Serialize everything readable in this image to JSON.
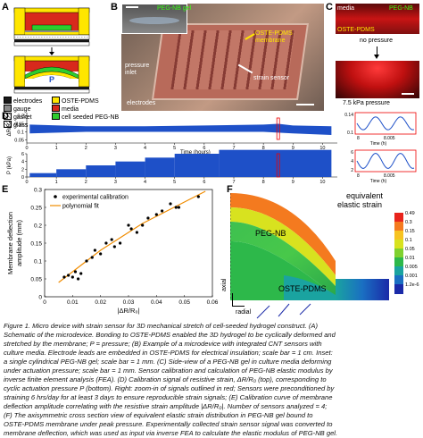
{
  "panel_a": {
    "label": "A",
    "pressure_label": "P",
    "legend": [
      {
        "text": "electrodes",
        "color": "#1a1a1a",
        "hatch": false
      },
      {
        "text": "OSTE-PDMS",
        "color": "#ffe600",
        "hatch": false
      },
      {
        "text": "gauge",
        "color": "#8a8a8a",
        "hatch": false
      },
      {
        "text": "media",
        "color": "#d8291c",
        "hatch": false
      },
      {
        "text": "gasket",
        "color": "#ffffff",
        "hatch": true
      },
      {
        "text": "cell seeded PEG-NB",
        "color": "#2ecc2e",
        "hatch": false
      },
      {
        "text": "glass",
        "color": "#ffffff",
        "hatch": true
      }
    ]
  },
  "panel_b": {
    "label": "B",
    "peg_nb_gel": "PEG-NB gel",
    "oste_membrane": "OSTE-PDMS\nmembrane",
    "strain_sensor": "strain sensor",
    "pressure_inlet": "pressure\ninlet",
    "electrodes": "electrodes"
  },
  "panel_c": {
    "label": "C",
    "media": "media",
    "peg_nb": "PEG-NB",
    "oste": "OSTE-PDMS",
    "no_pressure": "no pressure",
    "kpa_pressure": "7.5 kPa pressure"
  },
  "panel_d": {
    "label": "D",
    "top_ylabel": "ΔR/R₀",
    "top_yticks": [
      "0.2",
      "0.15",
      "0.1",
      "0.05"
    ],
    "bottom_ylabel": "P (kPa)",
    "bottom_yticks": [
      "6",
      "4",
      "2",
      "0"
    ],
    "xticks": [
      "0",
      "1",
      "2",
      "3",
      "4",
      "5",
      "6",
      "7",
      "8",
      "9",
      "10"
    ],
    "xlabel": "Time (hours)",
    "inset_top_yticks": [
      "0.14",
      "0.1"
    ],
    "inset_bottom_yticks": [
      "6",
      "4",
      "2"
    ],
    "inset_xticks": [
      "8",
      "8.005"
    ],
    "inset_xlabel": "Time (h)"
  },
  "panel_e": {
    "label": "E",
    "legend_points": "experimental calibration",
    "legend_fit": "polynomial fit",
    "ylabel_line1": "Membrane deflection",
    "ylabel_line2": "amplitude (mm)",
    "xlabel": "|ΔR/R₀|",
    "colors": {
      "points": "#000000",
      "fit": "#f08c00"
    }
  },
  "panel_f": {
    "label": "F",
    "title_line1": "equivalent",
    "title_line2": "elastic strain",
    "peg_nb": "PEG-NB",
    "oste": "OSTE-PDMS",
    "axial": "axial",
    "radial": "radial",
    "colorbar_ticks": [
      "0.49",
      "0.3",
      "0.15",
      "0.1",
      "0.05",
      "0.01",
      "0.005",
      "0.001",
      "1.2e-6"
    ],
    "colorbar_colors": [
      "#e8231c",
      "#f47a1f",
      "#f7c321",
      "#d8e21f",
      "#7fd12f",
      "#2db84a",
      "#1aa3a0",
      "#1a6fc2",
      "#1a2aa8"
    ]
  },
  "caption": [
    "Figure 1. Micro device with strain sensor for 3D mechanical stretch of cell-seeded hydrogel construct. (A)",
    "Schematic of the microdevice. Bonding to OSTE-PDMS enabled the 3D hydrogel to be cyclically deformed and",
    "stretched by the membrane; P = pressure; (B) Example of a microdevice with integrated CNT sensors with",
    "culture media. Electrode leads are embedded in OSTE-PDMS for electrical insulation; scale bar = 1 cm. Inset:",
    "a single cylindrical PEG-NB gel; scale bar = 1 mm. (C) Side-view of a PEG-NB gel in culture media deforming",
    "under actuation pressure; scale bar = 1 mm. Sensor calibration and calculation of PEG-NB elastic modulus by",
    "inverse finite element analysis (FEA). (D) Calibration signal of resistive strain, ΔR/R₀ (top), corresponding to",
    "cyclic actuation pressure P (bottom). Right: zoom-in of signals outlined in red; Sensors were preconditioned by",
    "straining 6 hrs/day for at least 3 days to ensure reproducible strain signals; (E) Calibration curve of membrane",
    "deflection amplitude correlating with the resistive strain amplitude |ΔR/R₀|. Number of sensors analyzed = 4;",
    "(F) The axisymmetric cross section view of equivalent elastic strain distribution in PEG-NB gel bound to",
    "OSTE-PDMS membrane under peak pressure. Experimentally collected strain sensor signal was converted to",
    "membrane deflection, which was used as input via inverse FEA to calculate the elastic modulus of PEG-NB gel."
  ],
  "chart_data": [
    {
      "type": "scatter",
      "title": "",
      "xlabel": "|ΔR/R₀|",
      "ylabel": "Membrane deflection amplitude (mm)",
      "xlim": [
        0,
        0.06
      ],
      "ylim": [
        0,
        0.3
      ],
      "xticks": [
        "0",
        "0.01",
        "0.02",
        "0.03",
        "0.04",
        "0.05",
        "0.06"
      ],
      "yticks": [
        "0",
        "0.05",
        "0.1",
        "0.15",
        "0.2",
        "0.25",
        "0.3"
      ],
      "series": [
        {
          "name": "experimental calibration",
          "points": [
            [
              0.007,
              0.055
            ],
            [
              0.0085,
              0.06
            ],
            [
              0.01,
              0.055
            ],
            [
              0.011,
              0.07
            ],
            [
              0.012,
              0.05
            ],
            [
              0.013,
              0.065
            ],
            [
              0.015,
              0.1
            ],
            [
              0.017,
              0.11
            ],
            [
              0.018,
              0.13
            ],
            [
              0.02,
              0.12
            ],
            [
              0.022,
              0.15
            ],
            [
              0.024,
              0.16
            ],
            [
              0.025,
              0.14
            ],
            [
              0.027,
              0.15
            ],
            [
              0.03,
              0.2
            ],
            [
              0.031,
              0.19
            ],
            [
              0.033,
              0.18
            ],
            [
              0.035,
              0.2
            ],
            [
              0.037,
              0.22
            ],
            [
              0.04,
              0.23
            ],
            [
              0.042,
              0.24
            ],
            [
              0.045,
              0.26
            ],
            [
              0.047,
              0.25
            ],
            [
              0.048,
              0.25
            ],
            [
              0.055,
              0.28
            ]
          ]
        },
        {
          "name": "polynomial fit",
          "points": [
            [
              0.005,
              0.04
            ],
            [
              0.01,
              0.07
            ],
            [
              0.015,
              0.1
            ],
            [
              0.02,
              0.13
            ],
            [
              0.025,
              0.155
            ],
            [
              0.03,
              0.18
            ],
            [
              0.035,
              0.205
            ],
            [
              0.04,
              0.225
            ],
            [
              0.045,
              0.245
            ],
            [
              0.05,
              0.265
            ],
            [
              0.055,
              0.285
            ],
            [
              0.0575,
              0.295
            ]
          ]
        }
      ]
    },
    {
      "type": "line",
      "title": "",
      "xlabel": "Time (hours)",
      "ylabel": "ΔR/R₀",
      "xlim": [
        0,
        10.5
      ],
      "ylim": [
        0.03,
        0.22
      ],
      "series": [
        {
          "name": "",
          "envelope_top": [
            [
              0.1,
              0.145
            ],
            [
              2,
              0.135
            ],
            [
              4,
              0.135
            ],
            [
              6,
              0.14
            ],
            [
              8,
              0.145
            ],
            [
              8.5,
              0.15
            ],
            [
              9,
              0.14
            ],
            [
              10.3,
              0.135
            ]
          ],
          "envelope_bottom": [
            [
              0.1,
              0.09
            ],
            [
              2,
              0.1
            ],
            [
              4,
              0.1
            ],
            [
              6,
              0.1
            ],
            [
              8,
              0.1
            ],
            [
              9,
              0.09
            ],
            [
              10.3,
              0.08
            ]
          ]
        }
      ]
    },
    {
      "type": "bar",
      "title": "",
      "xlabel": "Time (hours)",
      "ylabel": "P (kPa)",
      "xlim": [
        0,
        10.5
      ],
      "ylim": [
        0,
        6
      ],
      "series": [
        {
          "name": "",
          "segments": [
            [
              0.1,
              1.0,
              1
            ],
            [
              1.0,
              2.0,
              2
            ],
            [
              2.0,
              3.0,
              3
            ],
            [
              3.0,
              4.0,
              4
            ],
            [
              4.0,
              5.0,
              5
            ],
            [
              5.0,
              6.5,
              6
            ],
            [
              6.5,
              10.3,
              7
            ]
          ]
        }
      ]
    }
  ]
}
